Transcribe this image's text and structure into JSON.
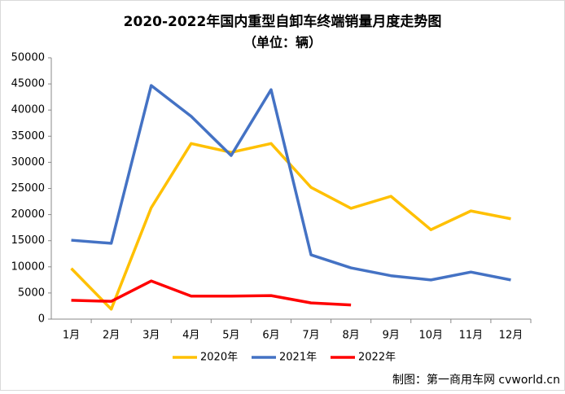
{
  "chart_data": {
    "type": "line",
    "title": "2020-2022年国内重型自卸车终端销量月度走势图",
    "subtitle": "（单位：辆）",
    "source": "制图：第一商用车网 cvworld.cn",
    "categories": [
      "1月",
      "2月",
      "3月",
      "4月",
      "5月",
      "6月",
      "7月",
      "8月",
      "9月",
      "10月",
      "11月",
      "12月"
    ],
    "series": [
      {
        "name": "2020年",
        "color": "#FFC000",
        "values": [
          9700,
          1900,
          21300,
          33600,
          31900,
          33600,
          25200,
          21200,
          23500,
          17100,
          20700,
          19200
        ]
      },
      {
        "name": "2021年",
        "color": "#4472C4",
        "values": [
          15100,
          14500,
          44700,
          38800,
          31300,
          43900,
          12300,
          9800,
          8300,
          7500,
          9000,
          7500
        ]
      },
      {
        "name": "2022年",
        "color": "#FF0000",
        "values": [
          3600,
          3400,
          7300,
          4400,
          4400,
          4500,
          3100,
          2700,
          null,
          null,
          null,
          null
        ]
      }
    ],
    "ylim": [
      0,
      50000
    ],
    "yticks": [
      0,
      5000,
      10000,
      15000,
      20000,
      25000,
      30000,
      35000,
      40000,
      45000,
      50000
    ],
    "grid": false,
    "legend": "bottom"
  }
}
